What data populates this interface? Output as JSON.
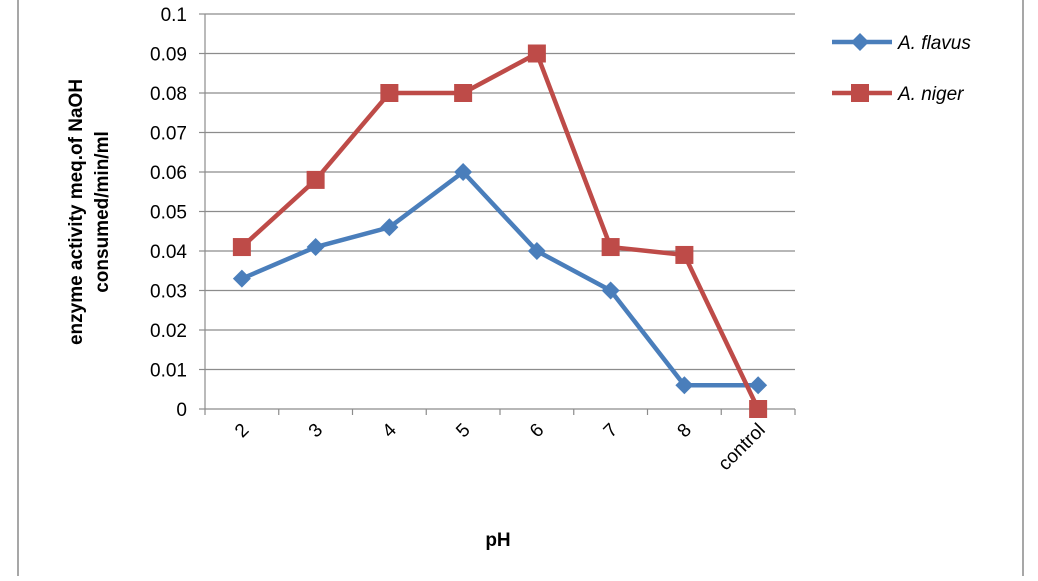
{
  "chart_data": {
    "type": "line",
    "title": "",
    "xlabel": "pH",
    "ylabel_line1": "enzyme activity  meq.of NaOH",
    "ylabel_line2": "consumed/min/ml",
    "categories": [
      "2",
      "3",
      "4",
      "5",
      "6",
      "7",
      "8",
      "control"
    ],
    "ylim": [
      0,
      0.1
    ],
    "yticks": [
      "0",
      "0.01",
      "0.02",
      "0.03",
      "0.04",
      "0.05",
      "0.06",
      "0.07",
      "0.08",
      "0.09",
      "0.1"
    ],
    "grid": "horizontal",
    "legend_position": "right",
    "series": [
      {
        "name": "A. flavus",
        "color": "#4a7ebb",
        "marker": "diamond",
        "values": [
          0.033,
          0.041,
          0.046,
          0.06,
          0.04,
          0.03,
          0.006,
          0.006
        ]
      },
      {
        "name": "A. niger",
        "color": "#be4b48",
        "marker": "square",
        "values": [
          0.041,
          0.058,
          0.08,
          0.08,
          0.09,
          0.041,
          0.039,
          0.0
        ]
      }
    ]
  }
}
